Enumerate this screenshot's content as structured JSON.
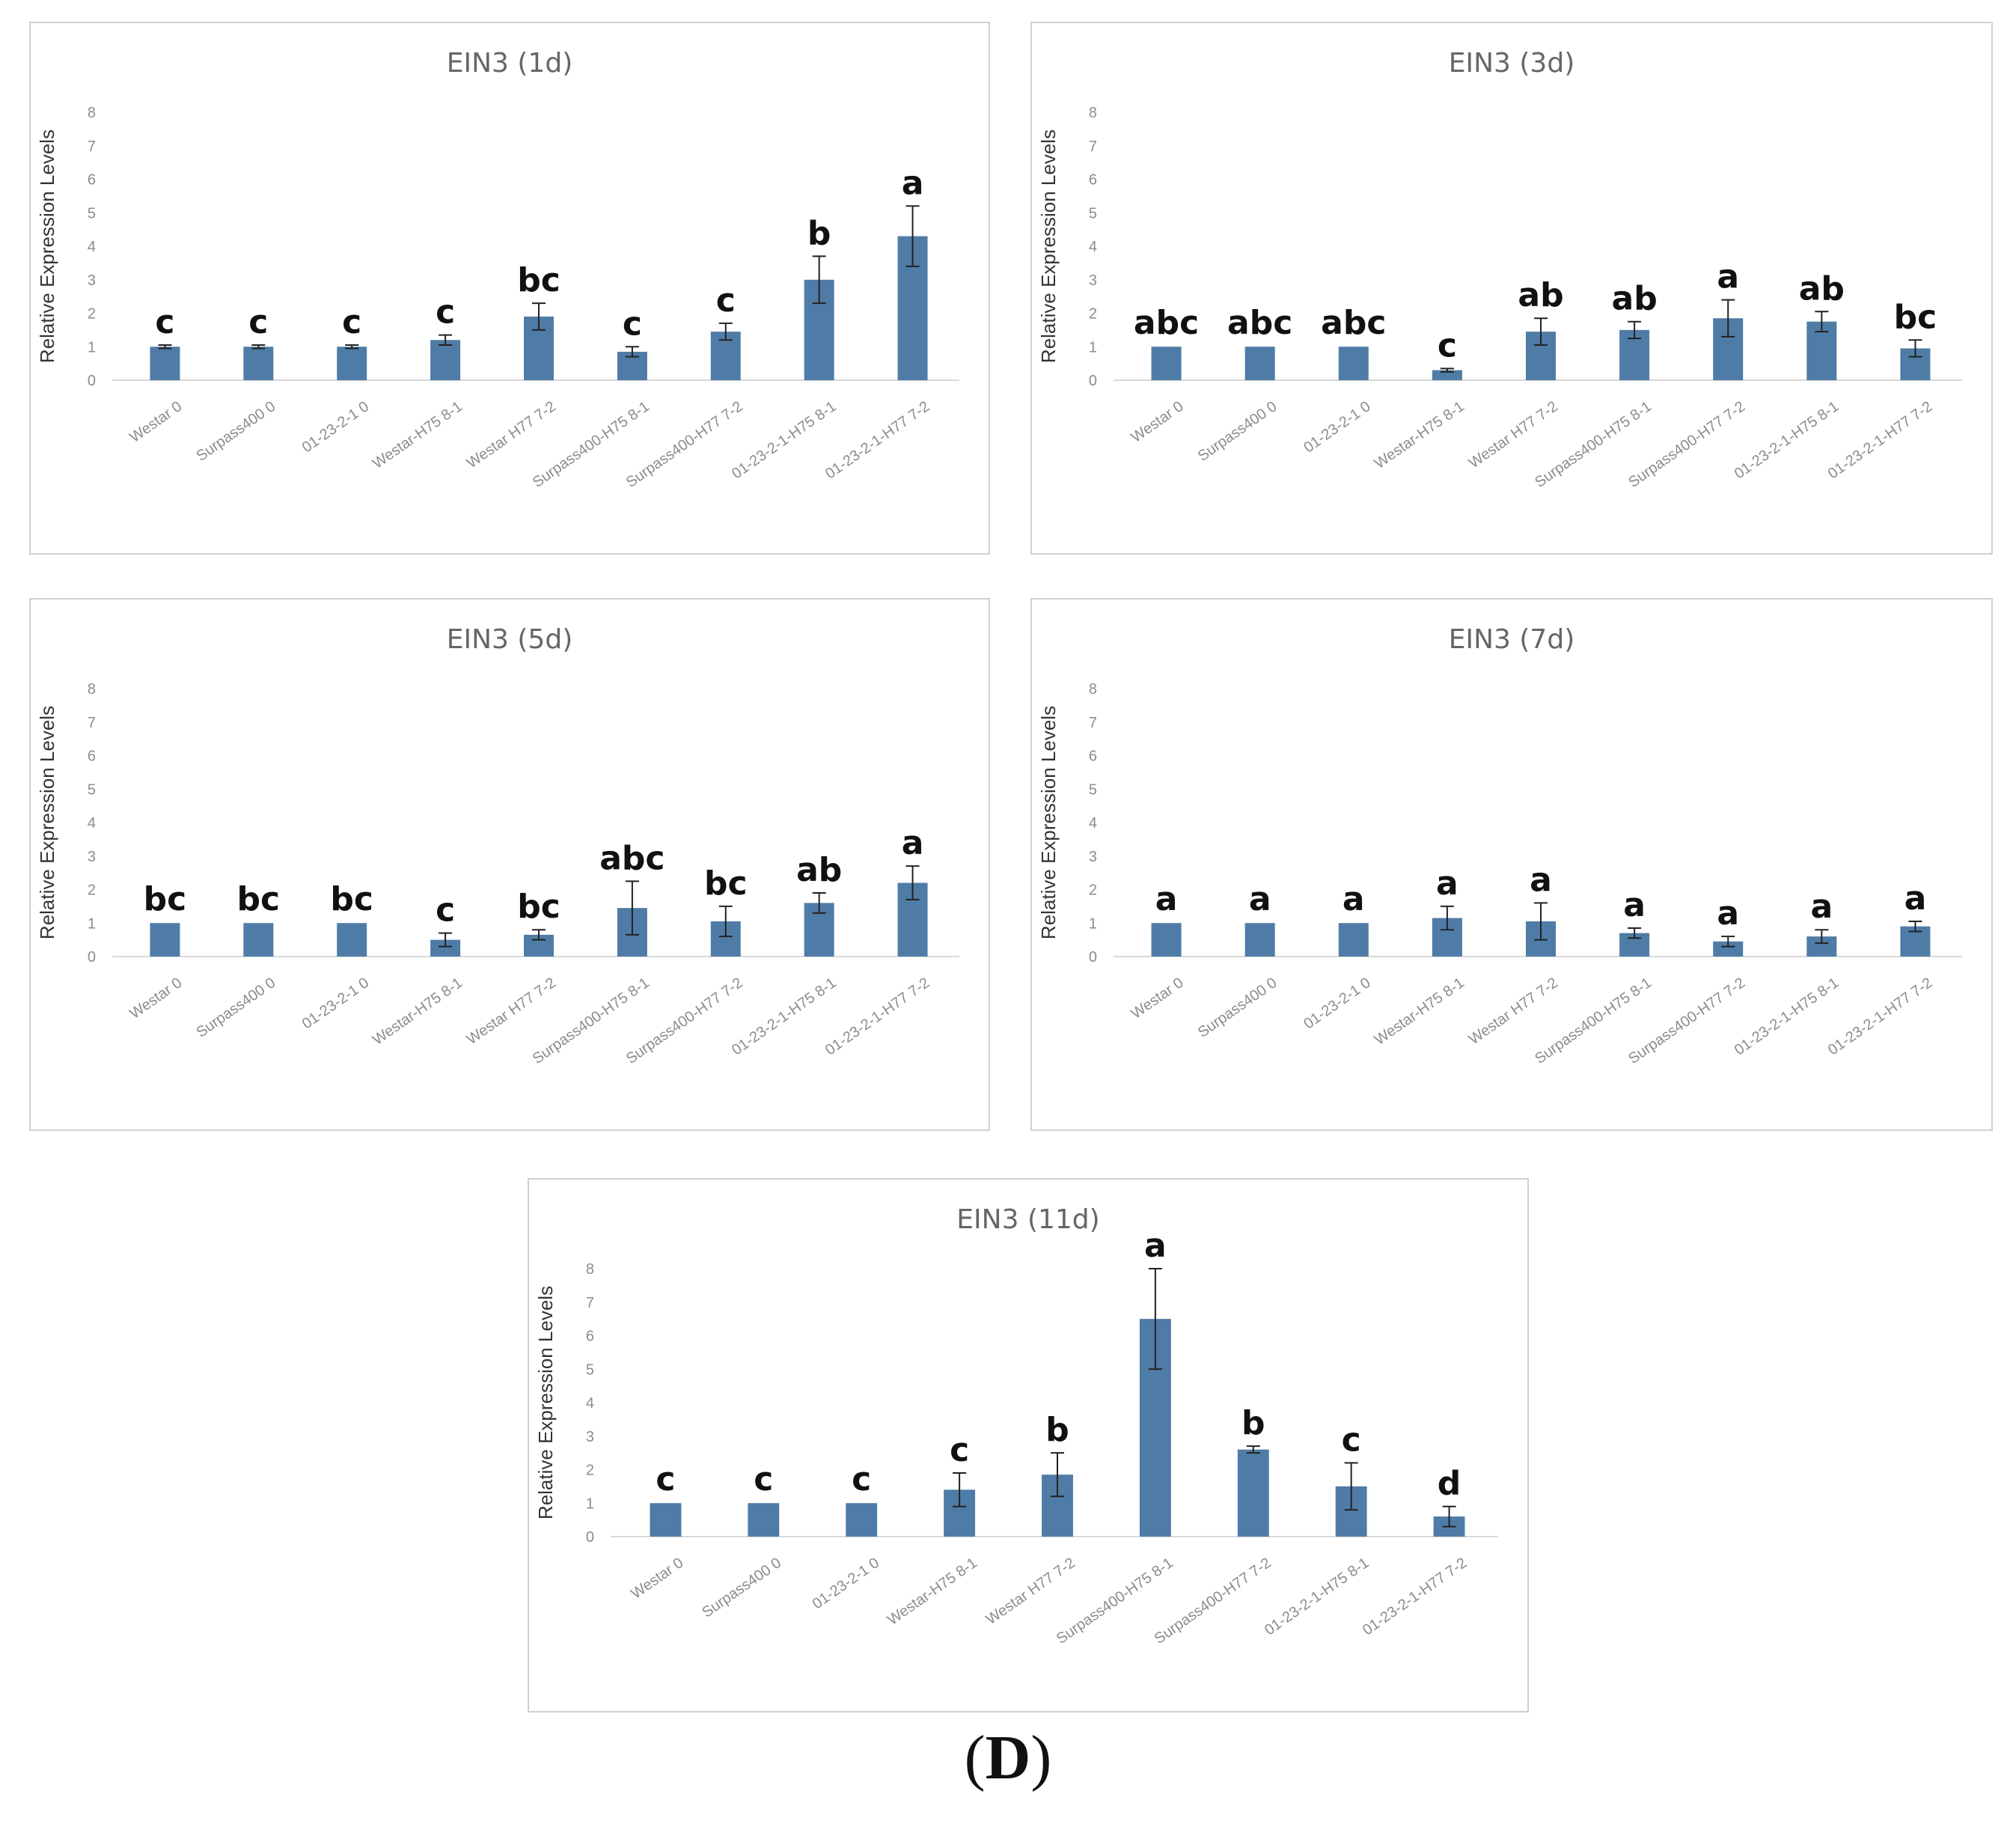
{
  "figure_label": {
    "open": "(",
    "letter": "D",
    "close": ")"
  },
  "colors": {
    "bar": "#4f7ca6",
    "error": "#222222",
    "frame": "#d0d0d0",
    "axis_text": "#8c8c8c",
    "title_text": "#666666",
    "letter_text": "#111111"
  },
  "chart_data": [
    {
      "type": "bar",
      "title": "EIN3  (1d)",
      "ylabel": "Relative Expression Levels",
      "xlabel": "",
      "ylim": [
        0,
        8
      ],
      "yticks": [
        "0",
        "1",
        "2",
        "3",
        "4",
        "5",
        "6",
        "7",
        "8"
      ],
      "categories": [
        "Westar 0",
        "Surpass400 0",
        "01-23-2-1 0",
        "Westar-H75 8-1",
        "Westar H77 7-2",
        "Surpass400-H75 8-1",
        "Surpass400-H77 7-2",
        "01-23-2-1-H75 8-1",
        "01-23-2-1-H77 7-2"
      ],
      "values": [
        1.0,
        1.0,
        1.0,
        1.2,
        1.9,
        0.85,
        1.45,
        3.0,
        4.3
      ],
      "errors": [
        0.05,
        0.05,
        0.05,
        0.15,
        0.4,
        0.15,
        0.25,
        0.7,
        0.9
      ],
      "significance": [
        "c",
        "c",
        "c",
        "c",
        "bc",
        "c",
        "c",
        "b",
        "a"
      ]
    },
    {
      "type": "bar",
      "title": "EIN3  (3d)",
      "ylabel": "Relative Expression Levels",
      "xlabel": "",
      "ylim": [
        0,
        8
      ],
      "yticks": [
        "0",
        "1",
        "2",
        "3",
        "4",
        "5",
        "6",
        "7",
        "8"
      ],
      "categories": [
        "Westar 0",
        "Surpass400 0",
        "01-23-2-1 0",
        "Westar-H75 8-1",
        "Westar H77 7-2",
        "Surpass400-H75 8-1",
        "Surpass400-H77 7-2",
        "01-23-2-1-H75 8-1",
        "01-23-2-1-H77 7-2"
      ],
      "values": [
        1.0,
        1.0,
        1.0,
        0.3,
        1.45,
        1.5,
        1.85,
        1.75,
        0.95
      ],
      "errors": [
        0.03,
        0.03,
        0.03,
        0.05,
        0.4,
        0.25,
        0.55,
        0.3,
        0.25
      ],
      "significance": [
        "abc",
        "abc",
        "abc",
        "c",
        "ab",
        "ab",
        "a",
        "ab",
        "bc"
      ]
    },
    {
      "type": "bar",
      "title": "EIN3  (5d)",
      "ylabel": "Relative Expression Levels",
      "xlabel": "",
      "ylim": [
        0,
        8
      ],
      "yticks": [
        "0",
        "1",
        "2",
        "3",
        "4",
        "5",
        "6",
        "7",
        "8"
      ],
      "categories": [
        "Westar 0",
        "Surpass400 0",
        "01-23-2-1 0",
        "Westar-H75 8-1",
        "Westar H77 7-2",
        "Surpass400-H75 8-1",
        "Surpass400-H77 7-2",
        "01-23-2-1-H75 8-1",
        "01-23-2-1-H77 7-2"
      ],
      "values": [
        1.0,
        1.0,
        1.0,
        0.5,
        0.65,
        1.45,
        1.05,
        1.6,
        2.2
      ],
      "errors": [
        0.03,
        0.03,
        0.03,
        0.2,
        0.15,
        0.8,
        0.45,
        0.3,
        0.5
      ],
      "significance": [
        "bc",
        "bc",
        "bc",
        "c",
        "bc",
        "abc",
        "bc",
        "ab",
        "a"
      ]
    },
    {
      "type": "bar",
      "title": "EIN3  (7d)",
      "ylabel": "Relative Expression Levels",
      "xlabel": "",
      "ylim": [
        0,
        8
      ],
      "yticks": [
        "0",
        "1",
        "2",
        "3",
        "4",
        "5",
        "6",
        "7",
        "8"
      ],
      "categories": [
        "Westar 0",
        "Surpass400 0",
        "01-23-2-1 0",
        "Westar-H75 8-1",
        "Westar H77 7-2",
        "Surpass400-H75 8-1",
        "Surpass400-H77 7-2",
        "01-23-2-1-H75 8-1",
        "01-23-2-1-H77 7-2"
      ],
      "values": [
        1.0,
        1.0,
        1.0,
        1.15,
        1.05,
        0.7,
        0.45,
        0.6,
        0.9
      ],
      "errors": [
        0.03,
        0.03,
        0.03,
        0.35,
        0.55,
        0.15,
        0.15,
        0.2,
        0.15
      ],
      "significance": [
        "a",
        "a",
        "a",
        "a",
        "a",
        "a",
        "a",
        "a",
        "a"
      ]
    },
    {
      "type": "bar",
      "title": "EIN3 (11d)",
      "ylabel": "Relative Expression Levels",
      "xlabel": "",
      "ylim": [
        0,
        8
      ],
      "yticks": [
        "0",
        "1",
        "2",
        "3",
        "4",
        "5",
        "6",
        "7",
        "8"
      ],
      "categories": [
        "Westar 0",
        "Surpass400 0",
        "01-23-2-1 0",
        "Westar-H75 8-1",
        "Westar H77 7-2",
        "Surpass400-H75 8-1",
        "Surpass400-H77 7-2",
        "01-23-2-1-H75 8-1",
        "01-23-2-1-H77 7-2"
      ],
      "values": [
        1.0,
        1.0,
        1.0,
        1.4,
        1.85,
        6.5,
        2.6,
        1.5,
        0.6
      ],
      "errors": [
        0.03,
        0.03,
        0.03,
        0.5,
        0.65,
        1.5,
        0.1,
        0.7,
        0.3
      ],
      "significance": [
        "c",
        "c",
        "c",
        "c",
        "b",
        "a",
        "b",
        "c",
        "d"
      ]
    }
  ]
}
